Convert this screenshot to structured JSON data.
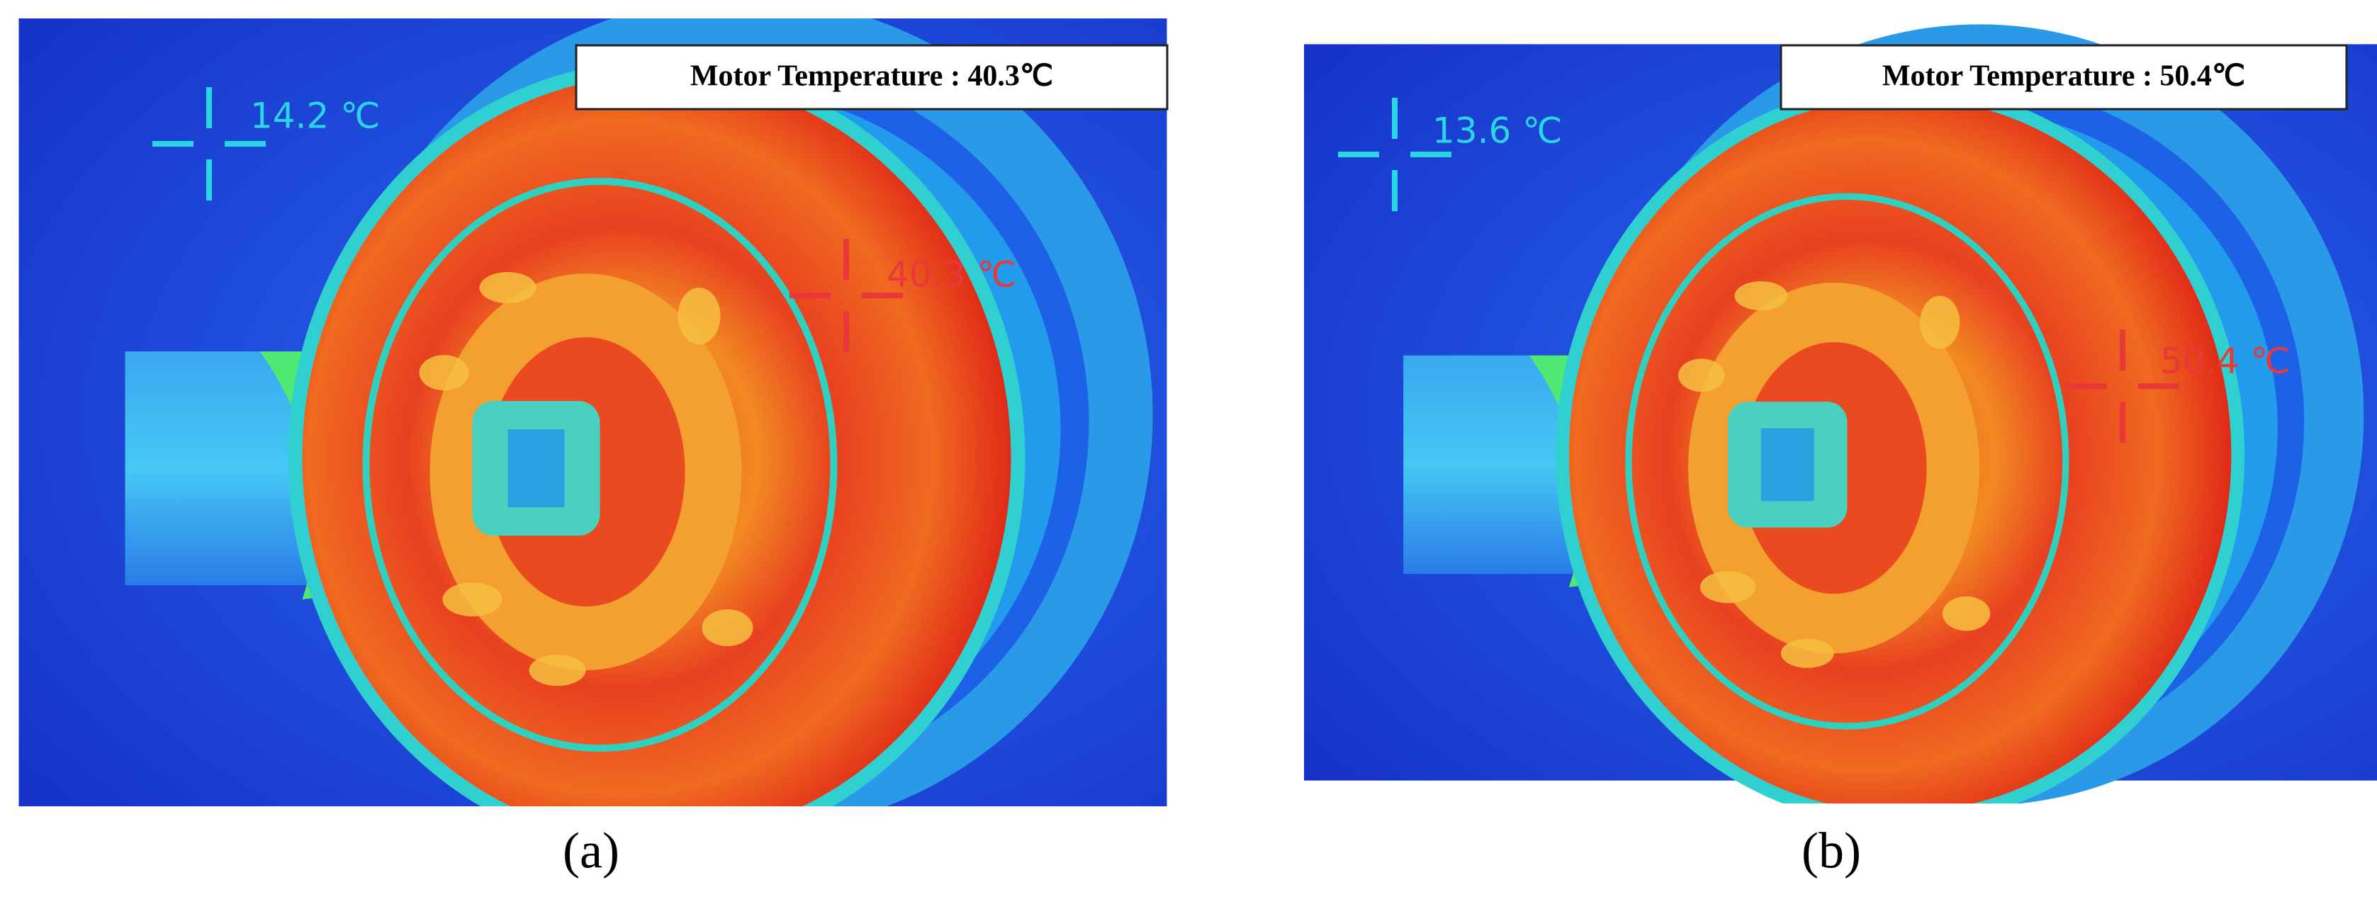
{
  "panels": [
    {
      "box": "Motor Temperature : 40.3℃",
      "cold": "14.2 ℃",
      "hot": "40.3 ℃",
      "caption": "(a)"
    },
    {
      "box": "Motor Temperature : 50.4℃",
      "cold": "13.6 ℃",
      "hot": "50.4 ℃",
      "caption": "(b)"
    }
  ]
}
